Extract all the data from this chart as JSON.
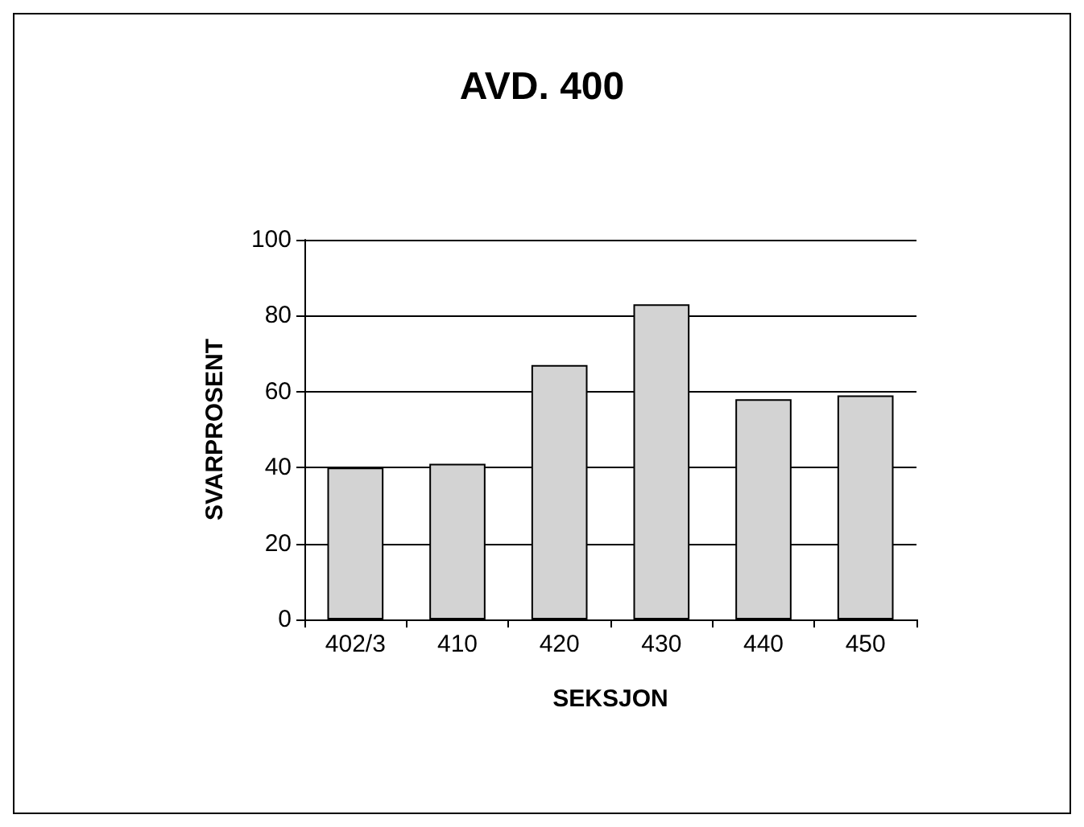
{
  "chart_data": {
    "type": "bar",
    "title": "AVD. 400",
    "xlabel": "SEKSJON",
    "ylabel": "SVARPROSENT",
    "categories": [
      "402/3",
      "410",
      "420",
      "430",
      "440",
      "450"
    ],
    "values": [
      40,
      41,
      67,
      83,
      58,
      59
    ],
    "color": "#d3d3d3",
    "ylim": [
      0,
      100
    ],
    "yticks": [
      0,
      20,
      40,
      60,
      80,
      100
    ],
    "grid": "y"
  }
}
